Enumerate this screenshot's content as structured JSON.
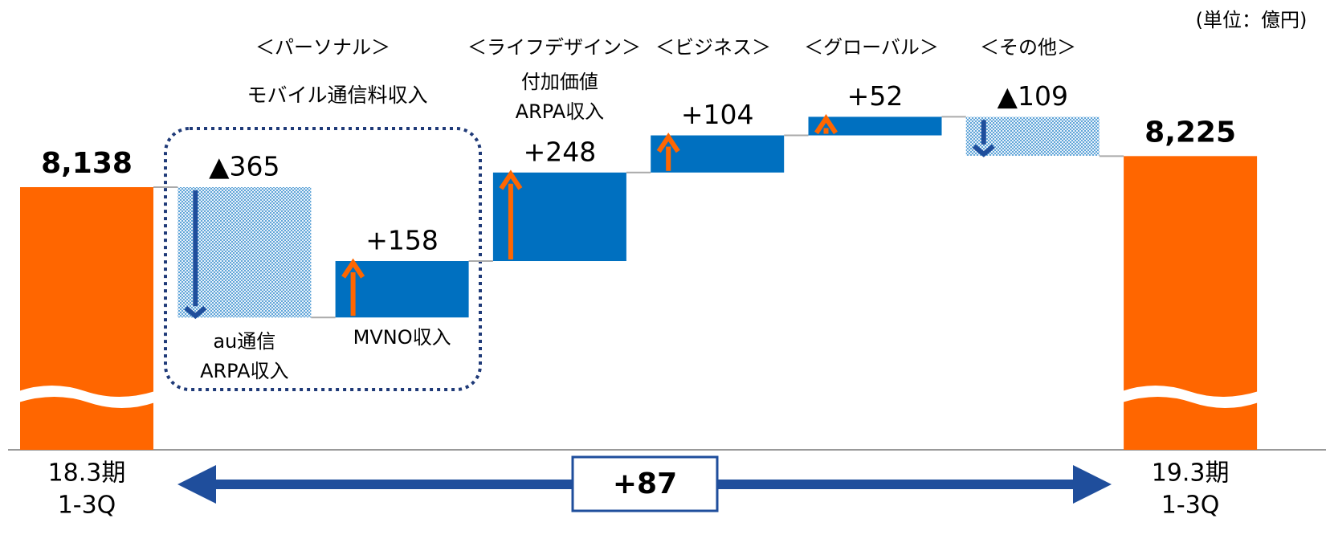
{
  "chart_data": {
    "type": "waterfall",
    "unit_note": "(単位：億円)",
    "categories": [
      [
        "18.3期",
        "1-3Q"
      ],
      [
        "au通信",
        "ARPA収入"
      ],
      [
        "MVNO収入"
      ],
      [
        "付加価値",
        "ARPA収入"
      ],
      null,
      null,
      null,
      [
        "19.3期",
        "1-3Q"
      ]
    ],
    "values": [
      8138,
      -365,
      158,
      248,
      104,
      52,
      -109,
      8225
    ],
    "value_labels": [
      "8,138",
      "▲365",
      "+158",
      "+248",
      "+104",
      "+52",
      "▲109",
      "8,225"
    ],
    "groups": [
      "＜パーソナル＞",
      "＜ライフデザイン＞",
      "＜ビジネス＞",
      "＜グローバル＞",
      "＜その他＞"
    ],
    "group_subtitle": "モバイル通信料収入",
    "total_change": {
      "value": 87,
      "label": "+87"
    },
    "colors": {
      "total": "#ff6600",
      "increase": "#0070c0",
      "decrease": "#0070c0",
      "negative_label": "#ff0000",
      "arrow_up": "#ff6600",
      "arrow_down": "#1f4e9c"
    }
  }
}
